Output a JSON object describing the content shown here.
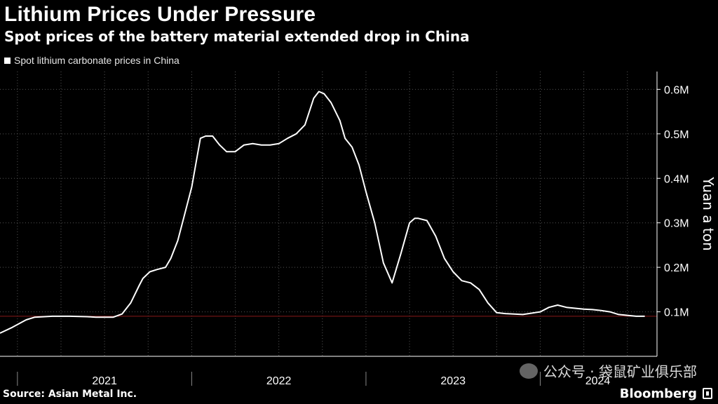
{
  "title": "Lithium Prices Under Pressure",
  "subtitle": "Spot prices of the battery material extended drop in China",
  "legend_label": "Spot lithium carbonate prices in China",
  "source": "Source: Asian Metal Inc.",
  "brand": "Bloomberg",
  "watermark": "公众号 · 袋鼠矿业俱乐部",
  "colors": {
    "background": "#000000",
    "line": "#ffffff",
    "reference_line": "#8b1a1a",
    "grid": "#555555"
  },
  "chart_data": {
    "type": "line",
    "title": "Lithium Prices Under Pressure",
    "subtitle": "Spot prices of the battery material extended drop in China",
    "ylabel": "Yuan a ton",
    "xlabel": "",
    "ylim": [
      0,
      0.64
    ],
    "y_ticks": [
      0.1,
      0.2,
      0.3,
      0.4,
      0.5,
      0.6
    ],
    "y_tick_labels": [
      "0.1M",
      "0.2M",
      "0.3M",
      "0.4M",
      "0.5M",
      "0.6M"
    ],
    "x_range": [
      2020.9,
      2024.67
    ],
    "year_labels": [
      {
        "label": "2021",
        "center": 2021.5
      },
      {
        "label": "2022",
        "center": 2022.5
      },
      {
        "label": "2023",
        "center": 2023.5
      },
      {
        "label": "2024",
        "center": 2024.33
      }
    ],
    "year_boundaries": [
      2021.0,
      2022.0,
      2023.0,
      2024.0
    ],
    "reference_line": 0.09,
    "series": [
      {
        "name": "Spot lithium carbonate prices in China",
        "x": [
          2020.9,
          2020.97,
          2021.05,
          2021.1,
          2021.2,
          2021.3,
          2021.4,
          2021.45,
          2021.5,
          2021.55,
          2021.6,
          2021.65,
          2021.7,
          2021.72,
          2021.76,
          2021.8,
          2021.85,
          2021.88,
          2021.92,
          2021.96,
          2022.0,
          2022.05,
          2022.08,
          2022.12,
          2022.16,
          2022.2,
          2022.25,
          2022.3,
          2022.35,
          2022.4,
          2022.45,
          2022.5,
          2022.55,
          2022.6,
          2022.65,
          2022.7,
          2022.73,
          2022.76,
          2022.8,
          2022.85,
          2022.88,
          2022.92,
          2022.96,
          2023.0,
          2023.05,
          2023.1,
          2023.15,
          2023.2,
          2023.25,
          2023.28,
          2023.3,
          2023.35,
          2023.4,
          2023.45,
          2023.5,
          2023.55,
          2023.6,
          2023.65,
          2023.7,
          2023.75,
          2023.8,
          2023.85,
          2023.9,
          2023.95,
          2024.0,
          2024.05,
          2024.1,
          2024.15,
          2024.2,
          2024.25,
          2024.3,
          2024.35,
          2024.4,
          2024.45,
          2024.5,
          2024.55,
          2024.6
        ],
        "values": [
          0.052,
          0.065,
          0.082,
          0.088,
          0.09,
          0.09,
          0.089,
          0.088,
          0.088,
          0.088,
          0.095,
          0.12,
          0.16,
          0.175,
          0.19,
          0.195,
          0.2,
          0.22,
          0.26,
          0.32,
          0.38,
          0.49,
          0.495,
          0.495,
          0.475,
          0.46,
          0.46,
          0.475,
          0.478,
          0.475,
          0.475,
          0.478,
          0.49,
          0.5,
          0.52,
          0.58,
          0.595,
          0.59,
          0.57,
          0.53,
          0.49,
          0.47,
          0.43,
          0.37,
          0.3,
          0.21,
          0.165,
          0.23,
          0.3,
          0.31,
          0.31,
          0.305,
          0.27,
          0.22,
          0.19,
          0.17,
          0.165,
          0.15,
          0.12,
          0.098,
          0.096,
          0.095,
          0.094,
          0.097,
          0.1,
          0.11,
          0.115,
          0.11,
          0.108,
          0.106,
          0.105,
          0.103,
          0.1,
          0.094,
          0.092,
          0.09,
          0.09
        ]
      }
    ]
  }
}
